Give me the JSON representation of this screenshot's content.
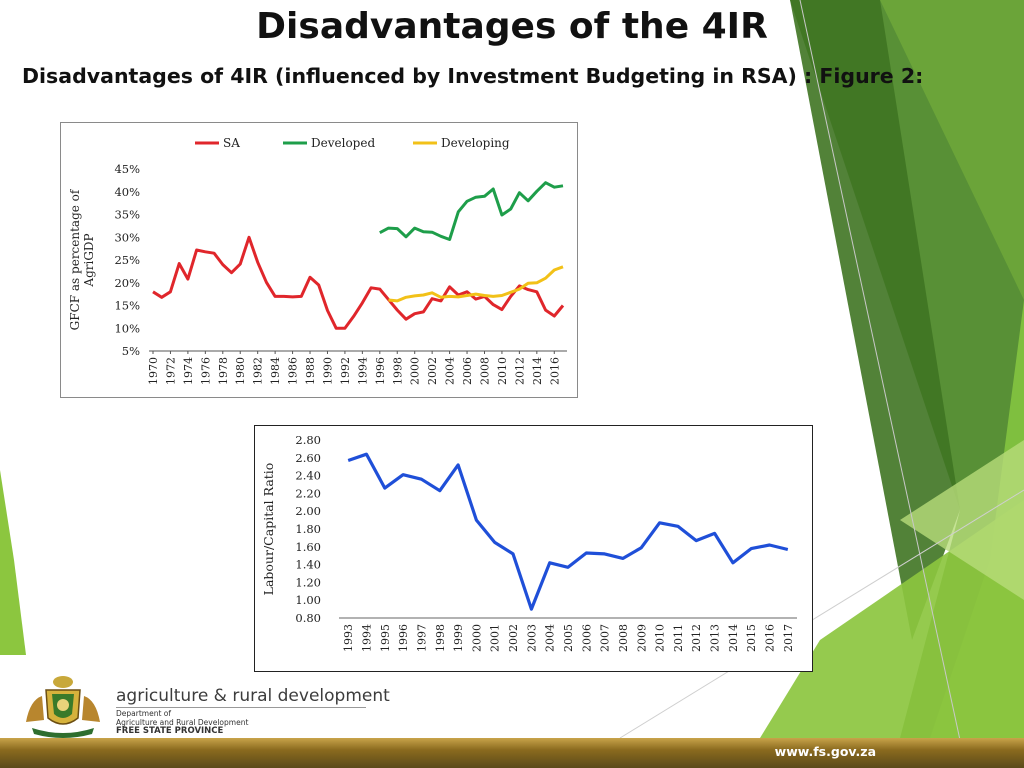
{
  "slide": {
    "title": "Disadvantages of the 4IR",
    "subtitle": "Disadvantages of 4IR (influenced by Investment Budgeting in RSA) : Figure 2:",
    "footer": {
      "brand": "agriculture & rural development",
      "dept_line1": "Department of",
      "dept_line2": "Agriculture and Rural Development",
      "dept_line3": "FREE STATE PROVINCE",
      "website": "www.fs.gov.za"
    },
    "colors": {
      "green_dark": "#3c6e1e",
      "green_light": "#8cc63f",
      "gold": "#a88433"
    }
  },
  "chart_data": [
    {
      "type": "line",
      "title": "",
      "xlabel": "",
      "ylabel": "GFCF as percentage of AgriGDP",
      "ylim": [
        5,
        45
      ],
      "yticks": [
        "45%",
        "40%",
        "35%",
        "30%",
        "25%",
        "20%",
        "15%",
        "10%",
        "5%"
      ],
      "xlim": [
        1970,
        2017
      ],
      "xticks": [
        "1970",
        "1972",
        "1974",
        "1976",
        "1978",
        "1980",
        "1982",
        "1984",
        "1986",
        "1988",
        "1990",
        "1992",
        "1994",
        "1996",
        "1998",
        "2000",
        "2002",
        "2004",
        "2006",
        "2008",
        "2010",
        "2012",
        "2014",
        "2016"
      ],
      "legend": "top",
      "grid": false,
      "series": [
        {
          "name": "SA",
          "color": "#e0262b",
          "x": [
            1970,
            1971,
            1972,
            1973,
            1974,
            1975,
            1976,
            1977,
            1978,
            1979,
            1980,
            1981,
            1982,
            1983,
            1984,
            1985,
            1986,
            1987,
            1988,
            1989,
            1990,
            1991,
            1992,
            1993,
            1994,
            1995,
            1996,
            1997,
            1998,
            1999,
            2000,
            2001,
            2002,
            2003,
            2004,
            2005,
            2006,
            2007,
            2008,
            2009,
            2010,
            2011,
            2012,
            2013,
            2014,
            2015,
            2016,
            2017
          ],
          "y": [
            18,
            16.8,
            18,
            24.2,
            20.8,
            27.2,
            26.8,
            26.5,
            24,
            22.2,
            24.1,
            30,
            24.5,
            20.1,
            17,
            17,
            16.9,
            17,
            21.2,
            19.5,
            13.9,
            10,
            10,
            12.6,
            15.6,
            18.9,
            18.6,
            16.3,
            14,
            12,
            13.2,
            13.6,
            16.5,
            16,
            19.1,
            17.3,
            18,
            16.4,
            17,
            15.2,
            14.1,
            17,
            19.3,
            18.5,
            18,
            14,
            12.7,
            15
          ]
        },
        {
          "name": "Developed",
          "color": "#1e9e4a",
          "x": [
            1996,
            1997,
            1998,
            1999,
            2000,
            2001,
            2002,
            2003,
            2004,
            2005,
            2006,
            2007,
            2008,
            2009,
            2010,
            2011,
            2012,
            2013,
            2014,
            2015,
            2016,
            2017
          ],
          "y": [
            31,
            32,
            31.9,
            30.1,
            32,
            31.2,
            31.1,
            30.2,
            29.5,
            35.6,
            37.9,
            38.8,
            39,
            40.6,
            34.9,
            36.2,
            39.8,
            38,
            40.1,
            42,
            41,
            41.3
          ]
        },
        {
          "name": "Developing",
          "color": "#f2c118",
          "x": [
            1997,
            1998,
            1999,
            2000,
            2001,
            2002,
            2003,
            2004,
            2005,
            2006,
            2007,
            2008,
            2009,
            2010,
            2011,
            2012,
            2013,
            2014,
            2015,
            2016,
            2017
          ],
          "y": [
            16.2,
            16,
            16.8,
            17.1,
            17.3,
            17.8,
            16.8,
            17,
            16.9,
            17.2,
            17.5,
            17.2,
            17,
            17.2,
            17.9,
            18.6,
            19.9,
            20,
            21,
            22.8,
            23.5
          ]
        }
      ]
    },
    {
      "type": "line",
      "title": "",
      "xlabel": "",
      "ylabel": "Labour/Capital Ratio",
      "ylim": [
        0.8,
        2.8
      ],
      "yticks": [
        "2.80",
        "2.60",
        "2.40",
        "2.20",
        "2.00",
        "1.80",
        "1.60",
        "1.40",
        "1.20",
        "1.00",
        "0.80"
      ],
      "xticks": [
        "1993",
        "1994",
        "1995",
        "1996",
        "1997",
        "1998",
        "1999",
        "2000",
        "2001",
        "2002",
        "2003",
        "2004",
        "2005",
        "2006",
        "2007",
        "2008",
        "2009",
        "2010",
        "2011",
        "2012",
        "2013",
        "2014",
        "2015",
        "2016",
        "2017"
      ],
      "grid": false,
      "series": [
        {
          "color": "#1f4fd8",
          "x": [
            1993,
            1994,
            1995,
            1996,
            1997,
            1998,
            1999,
            2000,
            2001,
            2002,
            2003,
            2004,
            2005,
            2006,
            2007,
            2008,
            2009,
            2010,
            2011,
            2012,
            2013,
            2014,
            2015,
            2016,
            2017
          ],
          "y": [
            2.57,
            2.64,
            2.26,
            2.41,
            2.36,
            2.23,
            2.52,
            1.9,
            1.65,
            1.52,
            0.9,
            1.42,
            1.37,
            1.53,
            1.52,
            1.47,
            1.59,
            1.87,
            1.83,
            1.67,
            1.75,
            1.42,
            1.58,
            1.62,
            1.57
          ]
        }
      ]
    }
  ]
}
